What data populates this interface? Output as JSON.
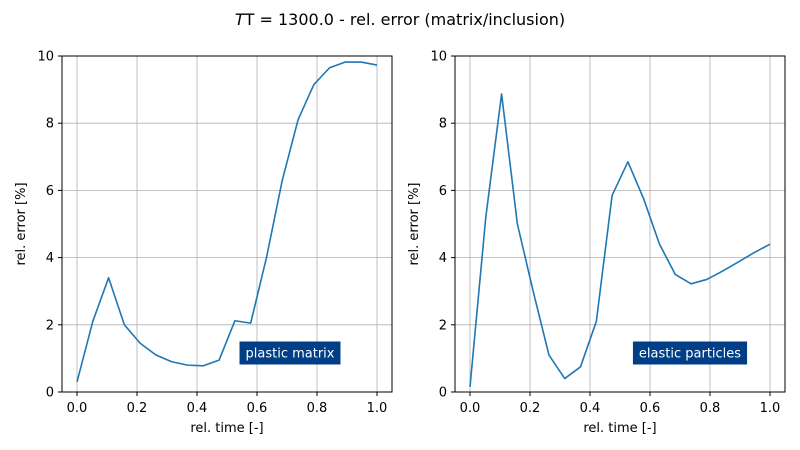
{
  "figure": {
    "title_prefix": "T = ",
    "title_value": "1300.0",
    "title_suffix": " - rel. error (matrix/inclusion)"
  },
  "colors": {
    "line": "#1f77b4",
    "annotation_bg": "#003f87",
    "annotation_text": "#ffffff",
    "grid": "#b0b0b0"
  },
  "chart_data": [
    {
      "type": "line",
      "xlabel": "rel. time [-]",
      "ylabel": "rel. error [%]",
      "xlim": [
        -0.05,
        1.05
      ],
      "ylim": [
        0,
        10
      ],
      "xticks": [
        0.0,
        0.2,
        0.4,
        0.6,
        0.8,
        1.0
      ],
      "xtick_labels": [
        "0.0",
        "0.2",
        "0.4",
        "0.6",
        "0.8",
        "1.0"
      ],
      "yticks": [
        0,
        2,
        4,
        6,
        8,
        10
      ],
      "ytick_labels": [
        "0",
        "2",
        "4",
        "6",
        "8",
        "10"
      ],
      "grid": true,
      "annotation": "plastic matrix",
      "series": [
        {
          "x": [
            0.0,
            0.0526,
            0.1053,
            0.1579,
            0.2105,
            0.2632,
            0.3158,
            0.3684,
            0.4211,
            0.4737,
            0.5263,
            0.5789,
            0.6316,
            0.6842,
            0.7368,
            0.7895,
            0.8421,
            0.8947,
            0.9474,
            1.0
          ],
          "y": [
            0.3,
            2.1,
            3.4,
            2.0,
            1.45,
            1.1,
            0.9,
            0.8,
            0.78,
            0.95,
            2.12,
            2.05,
            4.0,
            6.3,
            8.1,
            9.15,
            9.65,
            9.82,
            9.82,
            9.73
          ]
        }
      ]
    },
    {
      "type": "line",
      "xlabel": "rel. time [-]",
      "ylabel": "rel. error [%]",
      "xlim": [
        -0.05,
        1.05
      ],
      "ylim": [
        0,
        10
      ],
      "xticks": [
        0.0,
        0.2,
        0.4,
        0.6,
        0.8,
        1.0
      ],
      "xtick_labels": [
        "0.0",
        "0.2",
        "0.4",
        "0.6",
        "0.8",
        "1.0"
      ],
      "yticks": [
        0,
        2,
        4,
        6,
        8,
        10
      ],
      "ytick_labels": [
        "0",
        "2",
        "4",
        "6",
        "8",
        "10"
      ],
      "grid": true,
      "annotation": "elastic particles",
      "series": [
        {
          "x": [
            0.0,
            0.0526,
            0.1053,
            0.1579,
            0.2105,
            0.2632,
            0.3158,
            0.3684,
            0.4211,
            0.4737,
            0.5263,
            0.5789,
            0.6316,
            0.6842,
            0.7368,
            0.7895,
            0.8421,
            0.8947,
            0.9474,
            1.0
          ],
          "y": [
            0.15,
            5.2,
            8.87,
            5.0,
            3.0,
            1.1,
            0.4,
            0.75,
            2.1,
            5.85,
            6.85,
            5.75,
            4.4,
            3.5,
            3.22,
            3.35,
            3.6,
            3.87,
            4.15,
            4.4
          ]
        }
      ]
    }
  ]
}
